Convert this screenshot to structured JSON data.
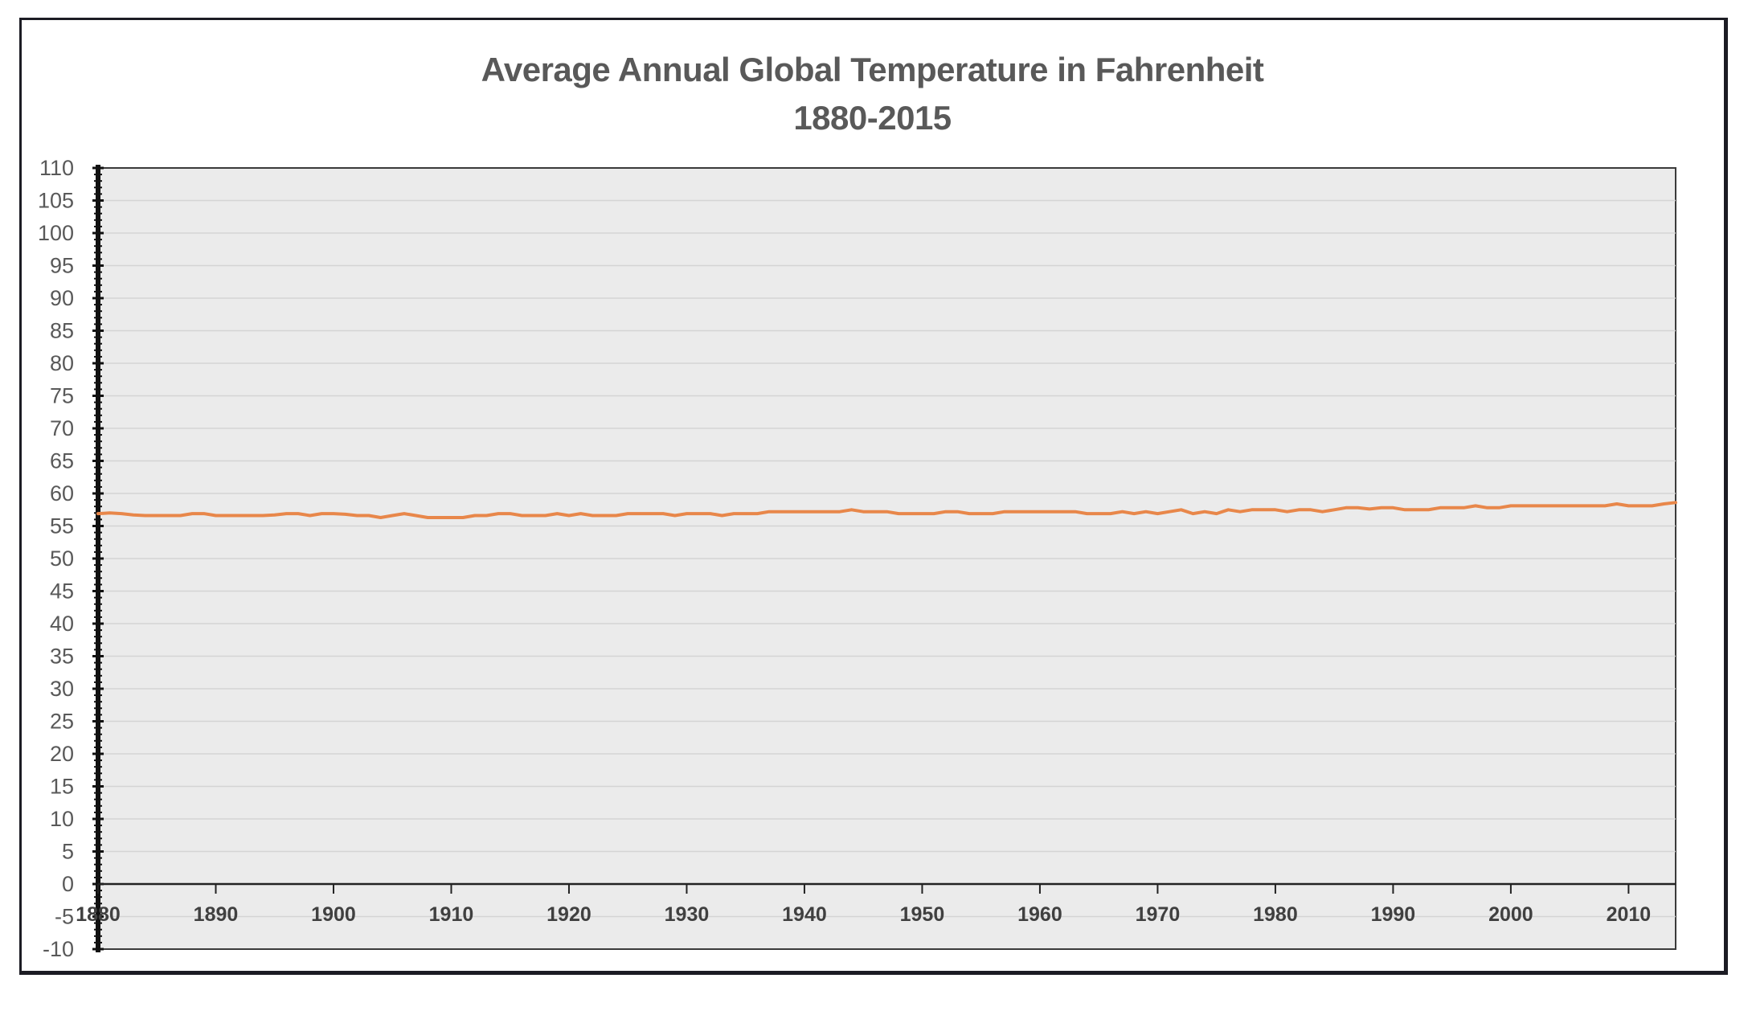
{
  "chart_data": {
    "type": "line",
    "title_lines": [
      "Average Annual Global Temperature in Fahrenheit",
      "1880-2015"
    ],
    "xlabel": "",
    "ylabel": "",
    "xlim": [
      1880,
      2014
    ],
    "ylim": [
      -10,
      110
    ],
    "y_ticks": [
      110,
      105,
      100,
      95,
      90,
      85,
      80,
      75,
      70,
      65,
      60,
      55,
      50,
      45,
      40,
      35,
      30,
      25,
      20,
      15,
      10,
      5,
      0,
      -5,
      -10
    ],
    "x_ticks": [
      1880,
      1890,
      1900,
      1910,
      1920,
      1930,
      1940,
      1950,
      1960,
      1970,
      1980,
      1990,
      2000,
      2010
    ],
    "grid": "horizontal",
    "plot_background": "#ebebeb",
    "series": [
      {
        "color": "#e8874a",
        "x": [
          1880,
          1881,
          1882,
          1883,
          1884,
          1885,
          1886,
          1887,
          1888,
          1889,
          1890,
          1891,
          1892,
          1893,
          1894,
          1895,
          1896,
          1897,
          1898,
          1899,
          1900,
          1901,
          1902,
          1903,
          1904,
          1905,
          1906,
          1907,
          1908,
          1909,
          1910,
          1911,
          1912,
          1913,
          1914,
          1915,
          1916,
          1917,
          1918,
          1919,
          1920,
          1921,
          1922,
          1923,
          1924,
          1925,
          1926,
          1927,
          1928,
          1929,
          1930,
          1931,
          1932,
          1933,
          1934,
          1935,
          1936,
          1937,
          1938,
          1939,
          1940,
          1941,
          1942,
          1943,
          1944,
          1945,
          1946,
          1947,
          1948,
          1949,
          1950,
          1951,
          1952,
          1953,
          1954,
          1955,
          1956,
          1957,
          1958,
          1959,
          1960,
          1961,
          1962,
          1963,
          1964,
          1965,
          1966,
          1967,
          1968,
          1969,
          1970,
          1971,
          1972,
          1973,
          1974,
          1975,
          1976,
          1977,
          1978,
          1979,
          1980,
          1981,
          1982,
          1983,
          1984,
          1985,
          1986,
          1987,
          1988,
          1989,
          1990,
          1991,
          1992,
          1993,
          1994,
          1995,
          1996,
          1997,
          1998,
          1999,
          2000,
          2001,
          2002,
          2003,
          2004,
          2005,
          2006,
          2007,
          2008,
          2009,
          2010,
          2011,
          2012,
          2013,
          2014
        ],
        "values": [
          56.9,
          57.0,
          56.9,
          56.7,
          56.6,
          56.6,
          56.6,
          56.6,
          56.9,
          56.9,
          56.6,
          56.6,
          56.6,
          56.6,
          56.6,
          56.7,
          56.9,
          56.9,
          56.6,
          56.9,
          56.9,
          56.8,
          56.6,
          56.6,
          56.3,
          56.6,
          56.9,
          56.6,
          56.3,
          56.3,
          56.3,
          56.3,
          56.6,
          56.6,
          56.9,
          56.9,
          56.6,
          56.6,
          56.6,
          56.9,
          56.6,
          56.9,
          56.6,
          56.6,
          56.6,
          56.9,
          56.9,
          56.9,
          56.9,
          56.6,
          56.9,
          56.9,
          56.9,
          56.6,
          56.9,
          56.9,
          56.9,
          57.2,
          57.2,
          57.2,
          57.2,
          57.2,
          57.2,
          57.2,
          57.5,
          57.2,
          57.2,
          57.2,
          56.9,
          56.9,
          56.9,
          56.9,
          57.2,
          57.2,
          56.9,
          56.9,
          56.9,
          57.2,
          57.2,
          57.2,
          57.2,
          57.2,
          57.2,
          57.2,
          56.9,
          56.9,
          56.9,
          57.2,
          56.9,
          57.2,
          56.9,
          57.2,
          57.5,
          56.9,
          57.2,
          56.9,
          57.5,
          57.2,
          57.5,
          57.5,
          57.5,
          57.2,
          57.5,
          57.5,
          57.2,
          57.5,
          57.8,
          57.8,
          57.6,
          57.8,
          57.8,
          57.5,
          57.5,
          57.5,
          57.8,
          57.8,
          57.8,
          58.1,
          57.8,
          57.8,
          58.1,
          58.1,
          58.1,
          58.1,
          58.1,
          58.1,
          58.1,
          58.1,
          58.1,
          58.4,
          58.1,
          58.1,
          58.1,
          58.4,
          58.6
        ]
      }
    ]
  },
  "style": {
    "line_color": "#e8874a",
    "title_color": "#595959",
    "frame_color": "#1c1c24"
  }
}
